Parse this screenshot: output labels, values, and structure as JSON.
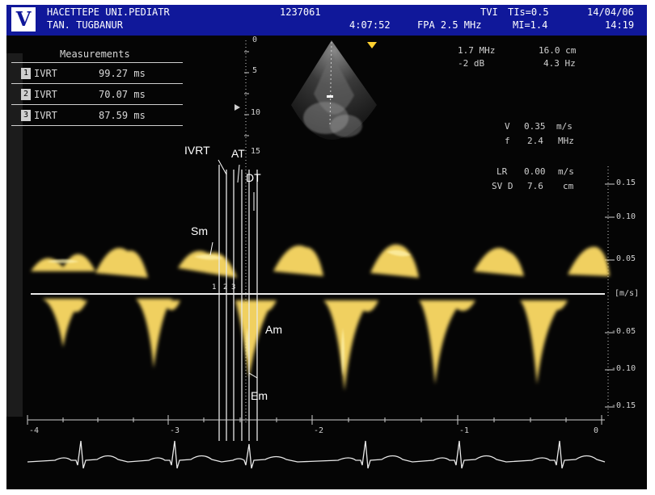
{
  "header": {
    "logo": "V",
    "institution": "HACETTEPE UNI.PEDIATR",
    "patient_name": "TAN. TUGBANUR",
    "patient_id": "1237061",
    "elapsed": "4:07:52",
    "probe": "FPA 2.5 MHz",
    "mode": "TVI",
    "tis": "TIs=0.5",
    "mi": "MI=1.4",
    "date": "14/04/06",
    "time": "14:19"
  },
  "measurements": {
    "title": "Measurements",
    "rows": [
      {
        "index": "1",
        "label": "IVRT",
        "value": "99.27 ms"
      },
      {
        "index": "2",
        "label": "IVRT",
        "value": "70.07 ms"
      },
      {
        "index": "3",
        "label": "IVRT",
        "value": "87.59 ms"
      }
    ]
  },
  "settings": {
    "freq": "1.7 MHz",
    "depth": "16.0 cm",
    "gain": "-2 dB",
    "fps": "4.3 Hz",
    "vel_label": "V",
    "vel_value": "0.35",
    "vel_unit": "m/s",
    "f_label": "f",
    "f_value": "2.4",
    "f_unit": "MHz",
    "lr_label": "LR",
    "lr_value": "0.00",
    "lr_unit": "m/s",
    "sv_label": "SV D",
    "sv_value": "7.6",
    "sv_unit": "cm"
  },
  "depth_scale": [
    "0",
    "5",
    "10",
    "15"
  ],
  "velocity_scale": [
    "0.15",
    "0.10",
    "0.05",
    "[m/s]",
    "-0.05",
    "-0.10",
    "-0.15"
  ],
  "time_scale": [
    "-4",
    "-3",
    "-2",
    "-1",
    "0"
  ],
  "annotations": {
    "ivrt": "IVRT",
    "at": "AT",
    "dt": "DT",
    "sm": "Sm",
    "am": "Am",
    "em": "Em"
  },
  "colors": {
    "background": "#050505",
    "header": "#10189a",
    "doppler": "#f0d060",
    "ecg": "#e8e8e8"
  }
}
